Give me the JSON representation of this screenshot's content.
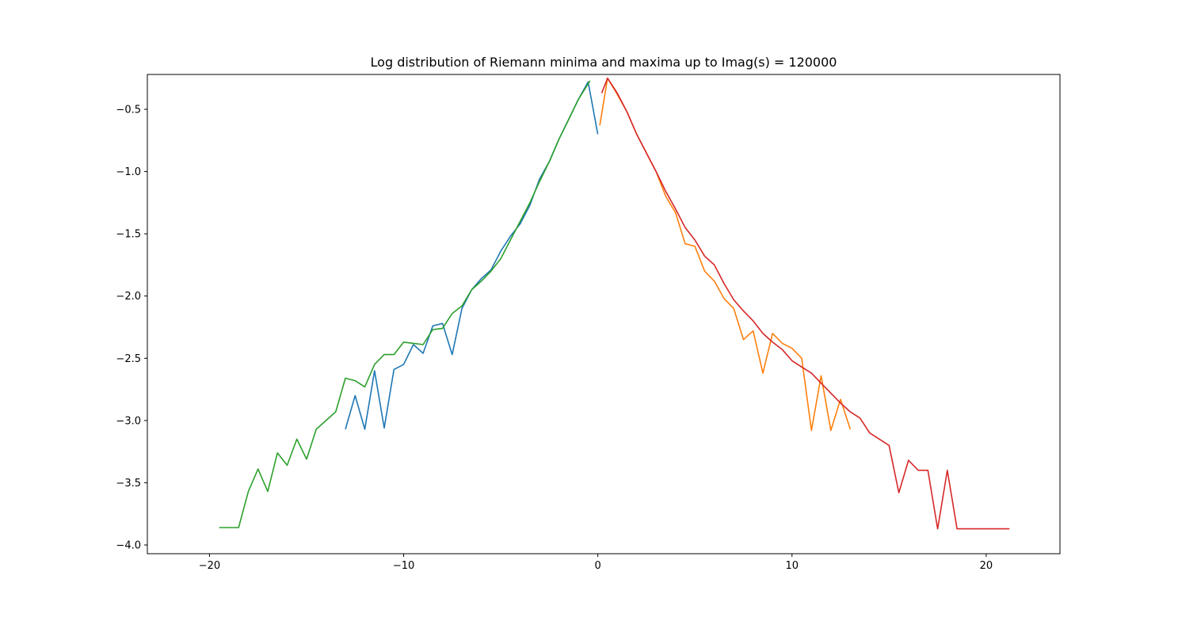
{
  "chart_data": {
    "type": "line",
    "title": "Log distribution of Riemann minima and maxima up to Imag(s) = 120000",
    "xlabel": "",
    "ylabel": "",
    "xlim": [
      -23.2,
      23.8
    ],
    "ylim": [
      -4.07,
      -0.22
    ],
    "xticks": [
      -20,
      -10,
      0,
      10,
      20
    ],
    "yticks": [
      -0.5,
      -1.0,
      -1.5,
      -2.0,
      -2.5,
      -3.0,
      -3.5,
      -4.0
    ],
    "xtick_labels": [
      "−20",
      "−10",
      "0",
      "10",
      "20"
    ],
    "ytick_labels": [
      "−0.5",
      "−1.0",
      "−1.5",
      "−2.0",
      "−2.5",
      "−3.0",
      "−3.5",
      "−4.0"
    ],
    "grid": false,
    "legend": "none",
    "series": [
      {
        "color": "#1f77b4",
        "x": [
          0.0,
          -0.5,
          -1.0,
          -1.5,
          -2.0,
          -2.5,
          -3.0,
          -3.5,
          -4.0,
          -4.5,
          -5.0,
          -5.5,
          -6.0,
          -6.5,
          -7.0,
          -7.5,
          -8.0,
          -8.5,
          -9.0,
          -9.5,
          -10.0,
          -10.5,
          -11.0,
          -11.5,
          -12.0,
          -12.5,
          -13.0
        ],
        "y": [
          -0.7,
          -0.28,
          -0.42,
          -0.58,
          -0.74,
          -0.92,
          -1.06,
          -1.27,
          -1.42,
          -1.52,
          -1.64,
          -1.79,
          -1.86,
          -1.95,
          -2.1,
          -2.47,
          -2.22,
          -2.24,
          -2.46,
          -2.39,
          -2.55,
          -2.59,
          -3.06,
          -2.6,
          -3.07,
          -2.8,
          -3.07
        ]
      },
      {
        "color": "#2ca02c",
        "x": [
          -0.4,
          -1.0,
          -1.5,
          -2.0,
          -2.5,
          -3.0,
          -3.5,
          -4.0,
          -4.5,
          -5.0,
          -5.5,
          -6.0,
          -6.5,
          -7.0,
          -7.5,
          -8.0,
          -8.5,
          -9.0,
          -9.5,
          -10.0,
          -10.5,
          -11.0,
          -11.5,
          -12.0,
          -12.5,
          -13.0,
          -13.5,
          -14.0,
          -14.5,
          -15.0,
          -15.5,
          -16.0,
          -16.5,
          -17.0,
          -17.5,
          -18.0,
          -18.5,
          -19.0,
          -19.5
        ],
        "y": [
          -0.27,
          -0.42,
          -0.58,
          -0.74,
          -0.92,
          -1.08,
          -1.25,
          -1.4,
          -1.55,
          -1.7,
          -1.8,
          -1.88,
          -1.95,
          -2.08,
          -2.14,
          -2.26,
          -2.27,
          -2.39,
          -2.38,
          -2.37,
          -2.47,
          -2.47,
          -2.55,
          -2.73,
          -2.68,
          -2.66,
          -2.93,
          -3.0,
          -3.07,
          -3.31,
          -3.15,
          -3.36,
          -3.26,
          -3.57,
          -3.39,
          -3.57,
          -3.86,
          -3.86,
          -3.86
        ]
      },
      {
        "color": "#ff7f0e",
        "x": [
          0.1,
          0.5,
          1.0,
          1.5,
          2.0,
          2.5,
          3.0,
          3.5,
          4.0,
          4.5,
          5.0,
          5.5,
          6.0,
          6.5,
          7.0,
          7.5,
          8.0,
          8.5,
          9.0,
          9.5,
          10.0,
          10.5,
          11.0,
          11.5,
          12.0,
          12.5,
          13.0
        ],
        "y": [
          -0.63,
          -0.25,
          -0.38,
          -0.52,
          -0.7,
          -0.85,
          -1.0,
          -1.2,
          -1.33,
          -1.58,
          -1.6,
          -1.8,
          -1.88,
          -2.02,
          -2.1,
          -2.35,
          -2.28,
          -2.62,
          -2.3,
          -2.38,
          -2.42,
          -2.5,
          -3.08,
          -2.64,
          -3.08,
          -2.83,
          -3.07
        ]
      },
      {
        "color": "#d62728",
        "x": [
          0.2,
          0.5,
          1.0,
          1.5,
          2.0,
          2.5,
          3.0,
          3.5,
          4.0,
          4.5,
          5.0,
          5.5,
          6.0,
          6.5,
          7.0,
          7.5,
          8.0,
          8.5,
          9.0,
          9.5,
          10.0,
          10.5,
          11.0,
          11.5,
          12.0,
          12.5,
          13.0,
          13.5,
          14.0,
          14.5,
          15.0,
          15.5,
          16.0,
          16.5,
          17.0,
          17.5,
          18.0,
          18.5,
          19.0,
          21.2
        ],
        "y": [
          -0.37,
          -0.25,
          -0.37,
          -0.52,
          -0.7,
          -0.85,
          -1.0,
          -1.16,
          -1.3,
          -1.45,
          -1.55,
          -1.68,
          -1.75,
          -1.9,
          -2.03,
          -2.12,
          -2.2,
          -2.3,
          -2.37,
          -2.43,
          -2.52,
          -2.57,
          -2.62,
          -2.7,
          -2.78,
          -2.86,
          -2.93,
          -2.98,
          -3.1,
          -3.15,
          -3.2,
          -3.58,
          -3.32,
          -3.4,
          -3.4,
          -3.87,
          -3.4,
          -3.87,
          -3.87,
          -3.87
        ]
      }
    ]
  }
}
